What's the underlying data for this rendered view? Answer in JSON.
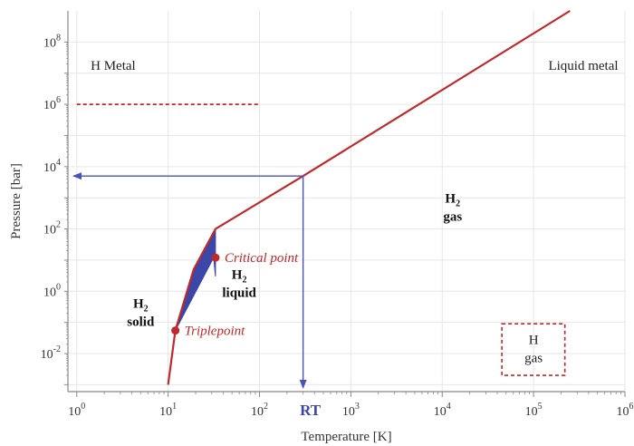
{
  "chart_data": {
    "type": "line",
    "title": "",
    "xlabel": "Temperature [K]",
    "ylabel": "Pressure [bar]",
    "x_scale": "log",
    "y_scale": "log",
    "xlim": [
      0.8,
      1000000
    ],
    "ylim": [
      0.0006,
      1000000000
    ],
    "x_ticks": [
      {
        "base": "10",
        "exp": "0",
        "value": 1
      },
      {
        "base": "10",
        "exp": "1",
        "value": 10
      },
      {
        "base": "10",
        "exp": "2",
        "value": 100
      },
      {
        "base": "10",
        "exp": "3",
        "value": 1000
      },
      {
        "base": "10",
        "exp": "4",
        "value": 10000
      },
      {
        "base": "10",
        "exp": "5",
        "value": 100000
      },
      {
        "base": "10",
        "exp": "6",
        "value": 1000000
      }
    ],
    "y_ticks": [
      {
        "base": "10",
        "exp": "-2",
        "value": 0.01
      },
      {
        "base": "10",
        "exp": "0",
        "value": 1
      },
      {
        "base": "10",
        "exp": "2",
        "value": 100
      },
      {
        "base": "10",
        "exp": "4",
        "value": 10000
      },
      {
        "base": "10",
        "exp": "6",
        "value": 1000000
      },
      {
        "base": "10",
        "exp": "8",
        "value": 100000000
      }
    ],
    "grid": true,
    "colors": {
      "curve": "#c0282a",
      "liquid_fill": "#3a46a8",
      "rt_arrow": "#4a52b8",
      "rt_label": "#3a46a8",
      "liquid_label": "#2a3aa0",
      "point": "#c0282a",
      "grid": "#e6e6e6",
      "axis": "#888888"
    },
    "series": [
      {
        "points": [
          [
            10,
            0.001
          ],
          [
            12,
            0.055
          ],
          [
            19,
            5
          ],
          [
            33,
            100
          ],
          [
            300,
            5000
          ],
          [
            250000,
            1000000000
          ]
        ]
      }
    ],
    "liquid_region": [
      [
        12,
        0.055
      ],
      [
        19,
        5
      ],
      [
        33,
        100
      ],
      [
        33,
        3
      ],
      [
        31.5,
        12
      ]
    ],
    "points": [
      {
        "name": "critical",
        "x": 33,
        "y": 12,
        "label": "Critical point"
      },
      {
        "name": "triple",
        "x": 12,
        "y": 0.055,
        "label": "Triplepoint"
      }
    ],
    "metal_boundary": {
      "y": 1000000,
      "x_from": 1,
      "x_to": 100
    },
    "h_gas_box": {
      "x_from": 45000,
      "x_to": 220000,
      "y_from": 0.002,
      "y_to": 0.09
    },
    "rt": {
      "x": 300,
      "y": 5000,
      "label": "RT"
    },
    "regions": [
      {
        "text": "H Metal",
        "x": 2.5,
        "y": 13000000
      },
      {
        "text": "Liquid metal",
        "x": 350000,
        "y": 13000000
      },
      {
        "species": "H",
        "sub": "2",
        "state": "gas",
        "x": 13000,
        "y": 700
      },
      {
        "species": "H",
        "sub": "2",
        "state": "solid",
        "x": 5,
        "y": 0.3
      },
      {
        "species": "H",
        "sub": "2",
        "state": "liquid",
        "x": 60,
        "y": 2.5
      },
      {
        "species": "H",
        "state": "gas",
        "x": 100000,
        "y": 0.02
      }
    ]
  }
}
